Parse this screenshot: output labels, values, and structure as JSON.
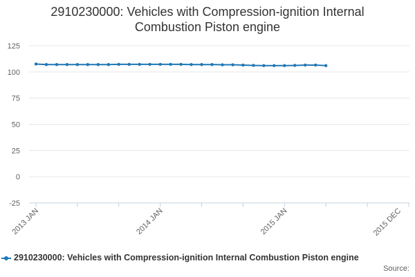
{
  "chart_data": {
    "type": "line",
    "title_lines": [
      "2910230000: Vehicles with Compression-ignition Internal",
      "Combustion Piston engine"
    ],
    "xlabel": "",
    "ylabel": "",
    "ylim": [
      -25,
      125
    ],
    "y_ticks": [
      125,
      100,
      75,
      50,
      25,
      0,
      -25
    ],
    "x_ticks": [
      "2013 JAN",
      "2014 JAN",
      "2015 JAN",
      "2015 DEC"
    ],
    "x_range": [
      "2013-01",
      "2015-12"
    ],
    "grid": true,
    "legend_position": "bottom",
    "series": [
      {
        "name": "2910230000: Vehicles with Compression-ignition Internal Combustion Piston engine",
        "color": "#1f77b4",
        "x": [
          "2013-01",
          "2013-02",
          "2013-03",
          "2013-04",
          "2013-05",
          "2013-06",
          "2013-07",
          "2013-08",
          "2013-09",
          "2013-10",
          "2013-11",
          "2013-12",
          "2014-01",
          "2014-02",
          "2014-03",
          "2014-04",
          "2014-05",
          "2014-06",
          "2014-07",
          "2014-08",
          "2014-09",
          "2014-10",
          "2014-11",
          "2014-12",
          "2015-01",
          "2015-02",
          "2015-03",
          "2015-04",
          "2015-05"
        ],
        "values": [
          107.5,
          107.0,
          107.0,
          107.0,
          107.0,
          107.0,
          107.0,
          107.0,
          107.2,
          107.2,
          107.2,
          107.2,
          107.2,
          107.2,
          107.2,
          107.0,
          107.0,
          107.0,
          106.8,
          106.8,
          106.5,
          106.2,
          106.0,
          106.0,
          106.0,
          106.2,
          106.5,
          106.5,
          106.0
        ]
      }
    ]
  },
  "source_label": "Source:"
}
